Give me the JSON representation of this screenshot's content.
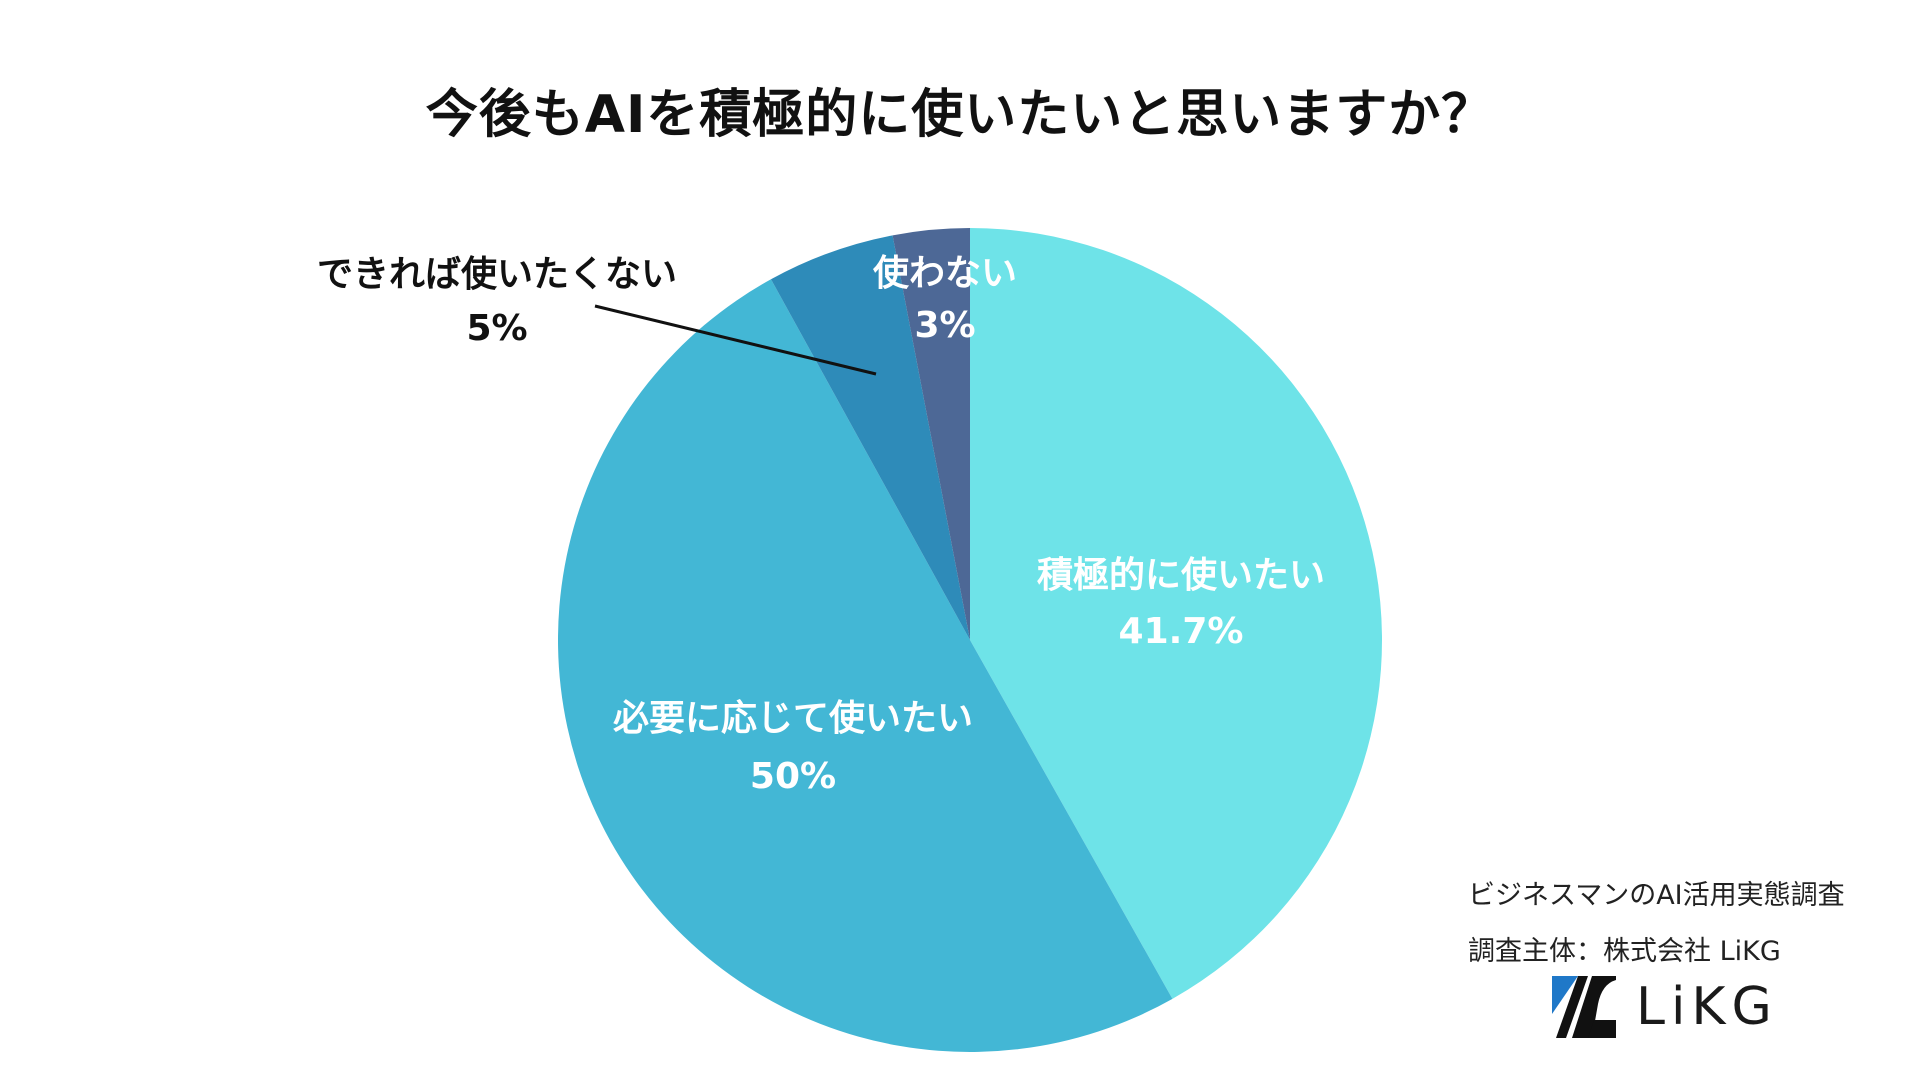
{
  "chart_data": {
    "type": "pie",
    "title": "今後もAIを積極的に使いたいと思いますか？",
    "start_angle_deg": 0,
    "direction": "clockwise",
    "slices": [
      {
        "label": "積極的に使いたい",
        "value_label": "41.7%",
        "value": 41.7,
        "color": "#6ee3e8",
        "label_color": "#ffffff"
      },
      {
        "label": "必要に応じて使いたい",
        "value_label": "50%",
        "value": 50,
        "color": "#43b7d5",
        "label_color": "#ffffff"
      },
      {
        "label": "できれば使いたくない",
        "value_label": "5%",
        "value": 5,
        "color": "#2e8bb9",
        "label_color": "#111111"
      },
      {
        "label": "使わない",
        "value_label": "3%",
        "value": 3,
        "color": "#4d6896",
        "label_color": "#ffffff"
      }
    ]
  },
  "source": {
    "line1": "ビジネスマンのAI活用実態調査",
    "line2": "調査主体：株式会社 LiKG"
  },
  "logo": {
    "text": "LiKG",
    "icon": "likg-logo-icon",
    "accent_color": "#1f78c8"
  }
}
